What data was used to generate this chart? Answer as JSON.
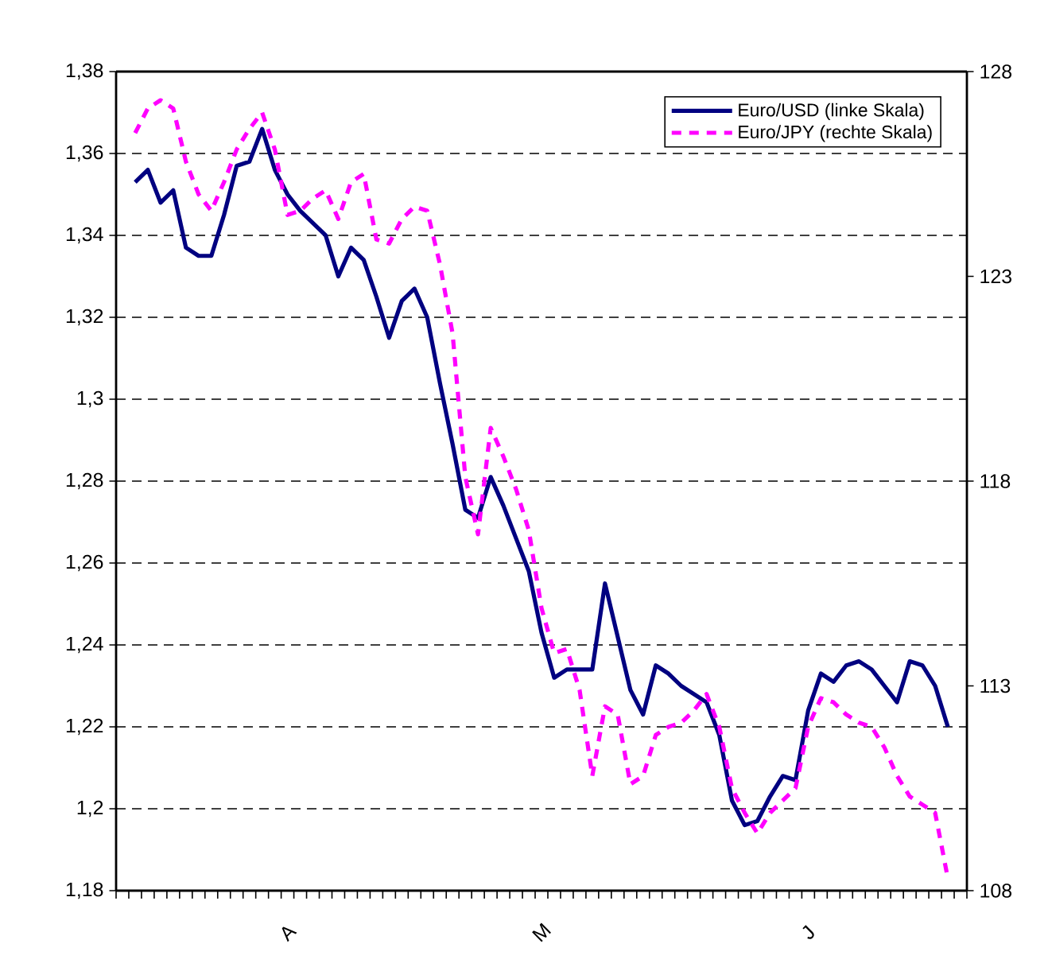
{
  "chart_data": {
    "type": "line",
    "categories": [
      null,
      null,
      null,
      null,
      null,
      null,
      null,
      null,
      null,
      null,
      null,
      null,
      "A",
      null,
      null,
      null,
      null,
      null,
      null,
      null,
      null,
      null,
      null,
      null,
      null,
      null,
      null,
      null,
      null,
      null,
      null,
      null,
      "M",
      null,
      null,
      null,
      null,
      null,
      null,
      null,
      null,
      null,
      null,
      null,
      null,
      null,
      null,
      null,
      null,
      null,
      null,
      null,
      null,
      "J",
      null,
      null,
      null,
      null,
      null,
      null,
      null,
      null,
      null,
      null,
      null
    ],
    "series": [
      {
        "name": "Euro/USD (linke Skala)",
        "color": "#000080",
        "line_style": "solid",
        "values": [
          1.353,
          1.356,
          1.348,
          1.351,
          1.337,
          1.335,
          1.335,
          1.345,
          1.357,
          1.358,
          1.366,
          1.356,
          1.35,
          1.346,
          1.343,
          1.34,
          1.33,
          1.337,
          1.334,
          1.325,
          1.315,
          1.324,
          1.327,
          1.32,
          1.304,
          1.289,
          1.273,
          1.271,
          1.281,
          1.274,
          1.266,
          1.258,
          1.243,
          1.232,
          1.234,
          1.234,
          1.234,
          1.255,
          1.242,
          1.229,
          1.223,
          1.235,
          1.233,
          1.23,
          1.228,
          1.226,
          1.218,
          1.202,
          1.196,
          1.197,
          1.203,
          1.208,
          1.207,
          1.224,
          1.233,
          1.231,
          1.235,
          1.236,
          1.234,
          1.23,
          1.226,
          1.236,
          1.235,
          1.23,
          1.22
        ]
      },
      {
        "name": "Euro/JPY (rechte Skala)",
        "color": "#ff00ff",
        "line_style": "dashed",
        "axis": "y2",
        "values": [
          126.5,
          127.1,
          127.3,
          127.1,
          125.8,
          125.0,
          124.6,
          125.3,
          126.1,
          126.6,
          127.0,
          126.1,
          124.5,
          124.6,
          124.9,
          125.1,
          124.4,
          125.3,
          125.5,
          123.9,
          123.8,
          124.4,
          124.7,
          124.6,
          123.3,
          121.6,
          118.1,
          116.7,
          119.3,
          118.6,
          117.8,
          116.8,
          114.9,
          113.8,
          113.9,
          112.9,
          110.8,
          112.5,
          112.3,
          110.6,
          110.8,
          111.8,
          112.0,
          112.1,
          112.4,
          112.8,
          112.0,
          110.5,
          109.9,
          109.4,
          109.9,
          110.2,
          110.5,
          112.0,
          112.7,
          112.6,
          112.3,
          112.1,
          112.0,
          111.5,
          110.8,
          110.3,
          110.1,
          109.9,
          108.3
        ]
      }
    ],
    "ylim": [
      1.18,
      1.38
    ],
    "yticks": [
      {
        "value": 1.18,
        "label": "1,18"
      },
      {
        "value": 1.2,
        "label": "1,2"
      },
      {
        "value": 1.22,
        "label": "1,22"
      },
      {
        "value": 1.24,
        "label": "1,24"
      },
      {
        "value": 1.26,
        "label": "1,26"
      },
      {
        "value": 1.28,
        "label": "1,28"
      },
      {
        "value": 1.3,
        "label": "1,3"
      },
      {
        "value": 1.32,
        "label": "1,32"
      },
      {
        "value": 1.34,
        "label": "1,34"
      },
      {
        "value": 1.36,
        "label": "1,36"
      },
      {
        "value": 1.38,
        "label": "1,38"
      }
    ],
    "y2lim": [
      108,
      128
    ],
    "y2ticks": [
      108,
      113,
      118,
      123,
      128
    ],
    "grid": "y",
    "legend": "top right",
    "marker": "none"
  }
}
